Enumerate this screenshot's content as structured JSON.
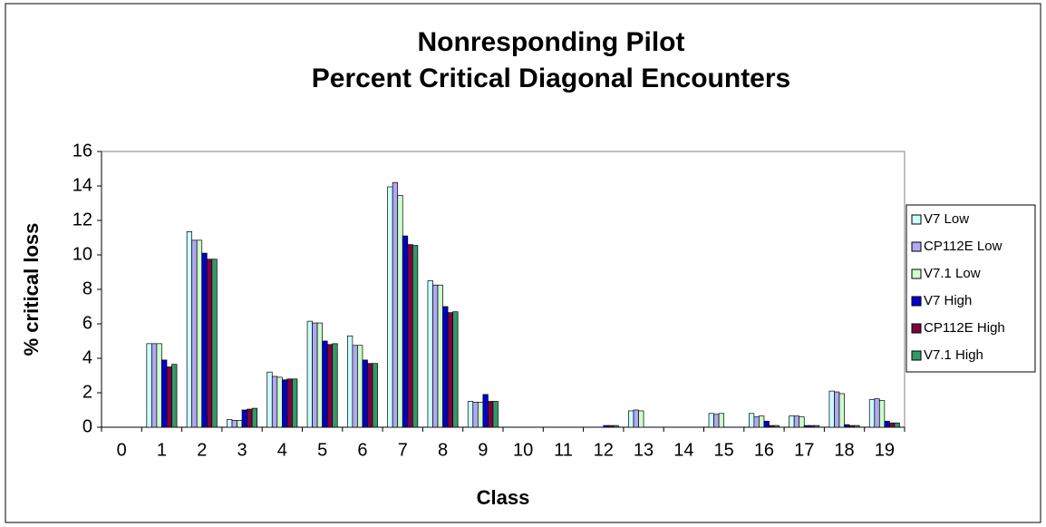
{
  "chart_data": {
    "type": "bar",
    "title": [
      "Nonresponding Pilot",
      "Percent Critical Diagonal Encounters"
    ],
    "x_label": "Class",
    "y_label": "% critical loss",
    "categories": [
      "0",
      "1",
      "2",
      "3",
      "4",
      "5",
      "6",
      "7",
      "8",
      "9",
      "10",
      "11",
      "12",
      "13",
      "14",
      "15",
      "16",
      "17",
      "18",
      "19"
    ],
    "series": [
      {
        "name": "V7 Low",
        "color": "#ccffff",
        "values": [
          0,
          4.85,
          11.35,
          0.45,
          3.2,
          6.15,
          5.3,
          13.95,
          8.5,
          1.5,
          0,
          0,
          0,
          0.95,
          0,
          0.8,
          0.8,
          0.65,
          2.1,
          1.6
        ]
      },
      {
        "name": "CP112E Low",
        "color": "#b0a8f0",
        "values": [
          0,
          4.85,
          10.85,
          0.4,
          2.95,
          6.05,
          4.75,
          14.2,
          8.25,
          1.45,
          0,
          0,
          0,
          1.0,
          0,
          0.75,
          0.6,
          0.65,
          2.05,
          1.65
        ]
      },
      {
        "name": "V7.1 Low",
        "color": "#ccffcc",
        "values": [
          0,
          4.85,
          10.85,
          0.4,
          2.9,
          6.05,
          4.75,
          13.45,
          8.25,
          1.45,
          0,
          0,
          0,
          0.95,
          0,
          0.8,
          0.65,
          0.6,
          1.95,
          1.55
        ]
      },
      {
        "name": "V7 High",
        "color": "#0000cc",
        "values": [
          0,
          3.9,
          10.1,
          1.0,
          2.75,
          5.0,
          3.9,
          11.1,
          7.0,
          1.9,
          0,
          0,
          0.1,
          0,
          0,
          0,
          0.35,
          0.1,
          0.15,
          0.35
        ]
      },
      {
        "name": "CP112E High",
        "color": "#800040",
        "values": [
          0,
          3.5,
          9.75,
          1.05,
          2.8,
          4.8,
          3.7,
          10.6,
          6.65,
          1.5,
          0,
          0,
          0.1,
          0,
          0,
          0,
          0.1,
          0.1,
          0.1,
          0.25
        ]
      },
      {
        "name": "V7.1 High",
        "color": "#339966",
        "values": [
          0,
          3.65,
          9.75,
          1.1,
          2.8,
          4.85,
          3.7,
          10.55,
          6.7,
          1.5,
          0,
          0,
          0.1,
          0,
          0,
          0,
          0.1,
          0.1,
          0.1,
          0.25
        ]
      }
    ],
    "ylim": [
      0,
      16
    ],
    "yticks": [
      0,
      2,
      4,
      6,
      8,
      10,
      12,
      14,
      16
    ],
    "grid": false,
    "legend": "right"
  }
}
